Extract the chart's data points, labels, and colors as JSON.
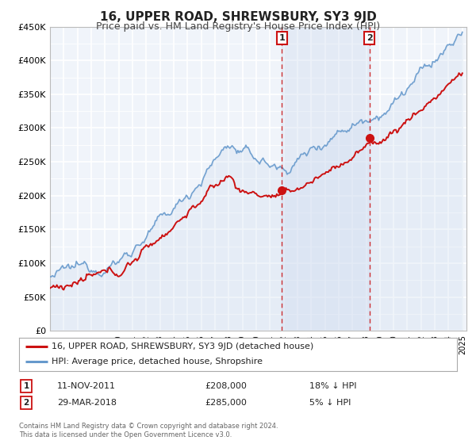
{
  "title": "16, UPPER ROAD, SHREWSBURY, SY3 9JD",
  "subtitle": "Price paid vs. HM Land Registry's House Price Index (HPI)",
  "title_fontsize": 11,
  "subtitle_fontsize": 9,
  "background_color": "#ffffff",
  "plot_bg_color": "#f0f4fa",
  "grid_color": "#ffffff",
  "hpi_color": "#6699cc",
  "hpi_fill_color": "#c8d8ee",
  "price_color": "#cc1111",
  "span_color": "#ccdaee",
  "ylim": [
    0,
    450000
  ],
  "ytick_labels": [
    "£0",
    "£50K",
    "£100K",
    "£150K",
    "£200K",
    "£250K",
    "£300K",
    "£350K",
    "£400K",
    "£450K"
  ],
  "ytick_values": [
    0,
    50000,
    100000,
    150000,
    200000,
    250000,
    300000,
    350000,
    400000,
    450000
  ],
  "sale1_date": 2011.87,
  "sale1_price": 208000,
  "sale1_label": "1",
  "sale1_date_str": "11-NOV-2011",
  "sale1_price_str": "£208,000",
  "sale1_hpi_str": "18% ↓ HPI",
  "sale2_date": 2018.24,
  "sale2_price": 285000,
  "sale2_label": "2",
  "sale2_date_str": "29-MAR-2018",
  "sale2_price_str": "£285,000",
  "sale2_hpi_str": "5% ↓ HPI",
  "legend_label1": "16, UPPER ROAD, SHREWSBURY, SY3 9JD (detached house)",
  "legend_label2": "HPI: Average price, detached house, Shropshire",
  "footer1": "Contains HM Land Registry data © Crown copyright and database right 2024.",
  "footer2": "This data is licensed under the Open Government Licence v3.0."
}
